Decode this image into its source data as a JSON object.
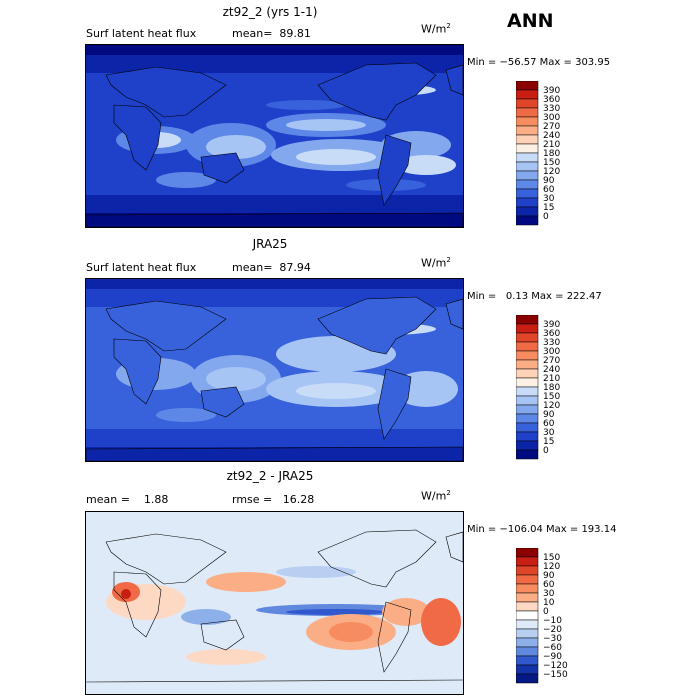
{
  "season": "ANN",
  "units": {
    "base": "W/m",
    "exp": "2"
  },
  "panels": [
    {
      "title": "zt92_2 (yrs 1-1)",
      "field_label": "Surf latent heat flux",
      "stat_text": "mean=  89.81",
      "minmax": "Min = −56.57 Max = 303.95",
      "levels": [
        "390",
        "360",
        "330",
        "300",
        "270",
        "240",
        "210",
        "180",
        "150",
        "120",
        "90",
        "60",
        "30",
        "15",
        "0"
      ],
      "colors": [
        "#8b0000",
        "#c81e14",
        "#e0452a",
        "#f06a45",
        "#f78c60",
        "#fbae86",
        "#fdd2b6",
        "#fdf1e6",
        "#c8dcf8",
        "#a6c4f4",
        "#84a8ee",
        "#5e88e8",
        "#3862dc",
        "#1f40c8",
        "#0c24a8",
        "#000a80"
      ]
    },
    {
      "title": "JRA25",
      "field_label": "Surf latent heat flux",
      "stat_text": "mean=  87.94",
      "minmax": "Min =   0.13 Max = 222.47",
      "levels": [
        "390",
        "360",
        "330",
        "300",
        "270",
        "240",
        "210",
        "180",
        "150",
        "120",
        "90",
        "60",
        "30",
        "15",
        "0"
      ],
      "colors": [
        "#8b0000",
        "#c81e14",
        "#e0452a",
        "#f06a45",
        "#f78c60",
        "#fbae86",
        "#fdd2b6",
        "#fdf1e6",
        "#c8dcf8",
        "#a6c4f4",
        "#84a8ee",
        "#5e88e8",
        "#3862dc",
        "#1f40c8",
        "#0c24a8",
        "#000a80"
      ]
    },
    {
      "title": "zt92_2 - JRA25",
      "stat_text": "mean =    1.88",
      "rmse_text": "rmse =   16.28",
      "minmax": "Min = −106.04 Max = 193.14",
      "levels": [
        "150",
        "120",
        "90",
        "60",
        "30",
        "10",
        "0",
        "−10",
        "−20",
        "−30",
        "−60",
        "−90",
        "−120",
        "−150"
      ],
      "colors": [
        "#8b0000",
        "#c81e14",
        "#e0452a",
        "#f06a45",
        "#f78c60",
        "#fbae86",
        "#fdd9c4",
        "#ffffff",
        "#dfeaf8",
        "#b8cff2",
        "#8eb0ea",
        "#5f88de",
        "#3158cc",
        "#1533a8",
        "#061884"
      ]
    }
  ]
}
